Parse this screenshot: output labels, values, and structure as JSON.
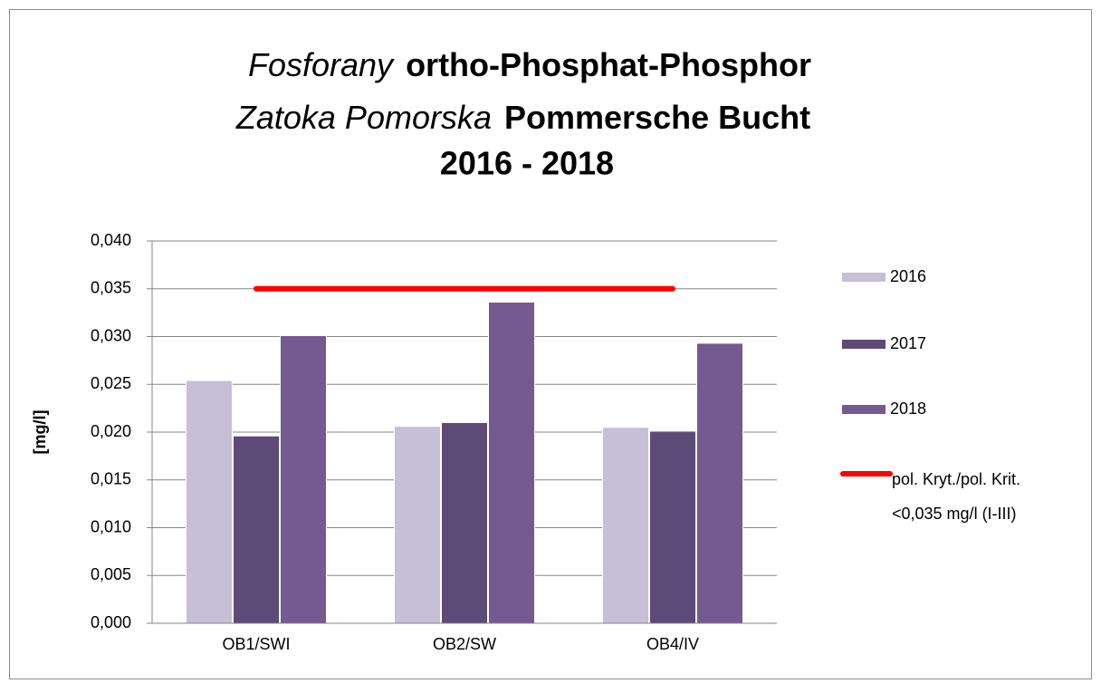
{
  "chart_data": {
    "type": "bar",
    "title": [
      "Fosforany",
      "ortho-Phosphat-Phosphor",
      "Zatoka Pomorska",
      "Pommersche Bucht",
      "2016 - 2018"
    ],
    "y_label": "[mg/l]",
    "categories": [
      "OB1/SWI",
      "OB2/SW",
      "OB4/IV"
    ],
    "series": [
      {
        "name": "2016",
        "color": "#c7bfd8",
        "values": [
          0.0254,
          0.0206,
          0.0205
        ]
      },
      {
        "name": "2017",
        "color": "#5e4a78",
        "values": [
          0.0196,
          0.021,
          0.0201
        ]
      },
      {
        "name": "2018",
        "color": "#735b91",
        "values": [
          0.0301,
          0.0336,
          0.0293
        ]
      },
      {
        "name": "pol. Kryt./pol. Krit. <0,035 mg/l (I-III)",
        "color": "#ff0000",
        "type": "line",
        "values": [
          0.035,
          0.035,
          0.035
        ]
      }
    ],
    "ylim": [
      0,
      0.04
    ],
    "yticks": [
      {
        "value": 0,
        "label": "0,000"
      },
      {
        "value": 0.005,
        "label": "0,005"
      },
      {
        "value": 0.01,
        "label": "0,010"
      },
      {
        "value": 0.015,
        "label": "0,015"
      },
      {
        "value": 0.02,
        "label": "0,020"
      },
      {
        "value": 0.025,
        "label": "0,025"
      },
      {
        "value": 0.03,
        "label": "0,030"
      },
      {
        "value": 0.035,
        "label": "0,035"
      },
      {
        "value": 0.04,
        "label": "0,040"
      }
    ],
    "grid": true,
    "legend": "right"
  }
}
